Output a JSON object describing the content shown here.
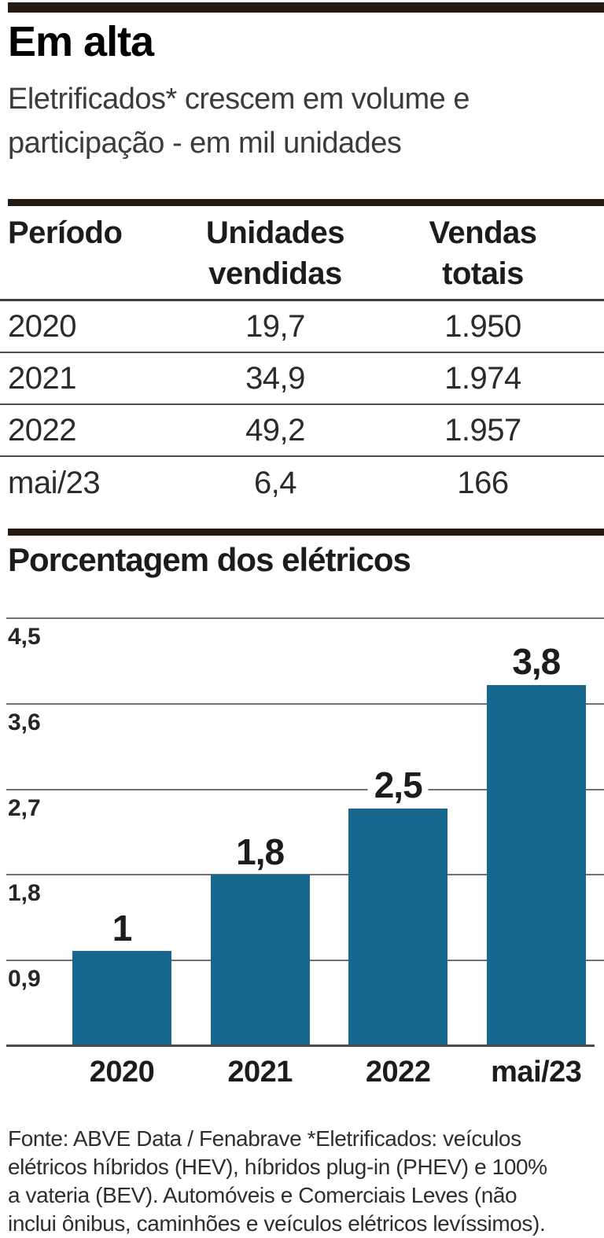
{
  "page": {
    "background": "#ffffff",
    "accent_bar_color": "#241a12"
  },
  "header": {
    "title": "Em alta",
    "subtitle_lines": [
      "Eletrificados* crescem em volume e",
      "participação - em mil unidades"
    ]
  },
  "table": {
    "columns": [
      {
        "lines": [
          "Período"
        ]
      },
      {
        "lines": [
          "Unidades",
          "vendidas"
        ]
      },
      {
        "lines": [
          "Vendas",
          "totais"
        ]
      }
    ],
    "rows": [
      [
        "2020",
        "19,7",
        "1.950"
      ],
      [
        "2021",
        "34,9",
        "1.974"
      ],
      [
        "2022",
        "49,2",
        "1.957"
      ],
      [
        "mai/23",
        "6,4",
        "166"
      ]
    ]
  },
  "chart_section": {
    "title": "Porcentagem dos elétricos"
  },
  "chart_data": {
    "type": "bar",
    "title": "Porcentagem dos elétricos",
    "categories": [
      "2020",
      "2021",
      "2022",
      "mai/23"
    ],
    "values": [
      1,
      1.8,
      2.5,
      3.8
    ],
    "value_labels": [
      "1",
      "1,8",
      "2,5",
      "3,8"
    ],
    "xlabel": "",
    "ylabel": "",
    "ylim": [
      0,
      4.5
    ],
    "y_ticks": [
      0.9,
      1.8,
      2.7,
      3.6,
      4.5
    ],
    "y_tick_labels": [
      "0,9",
      "1,8",
      "2,7",
      "3,6",
      "4,5"
    ],
    "grid": true,
    "legend": false,
    "bar_color": "#17678F"
  },
  "footer": {
    "lines": [
      "Fonte: ABVE Data / Fenabrave *Eletrificados: veículos",
      "elétricos híbridos (HEV), híbridos plug-in (PHEV) e 100%",
      "a vateria (BEV). Automóveis e Comerciais Leves (não",
      "inclui ônibus, caminhões e veículos elétricos levíssimos)."
    ]
  }
}
